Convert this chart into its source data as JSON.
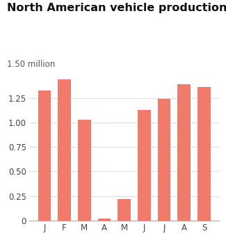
{
  "title": "North American vehicle production",
  "subtitle": "1.50 million",
  "categories": [
    "J",
    "F",
    "M",
    "A",
    "M",
    "J",
    "J",
    "A",
    "S"
  ],
  "values": [
    1.33,
    1.44,
    1.03,
    0.02,
    0.22,
    1.13,
    1.24,
    1.39,
    1.36
  ],
  "bar_color": "#F07B6A",
  "background_color": "#ffffff",
  "ylim": [
    0,
    1.55
  ],
  "yticks": [
    0,
    0.25,
    0.5,
    0.75,
    1.0,
    1.25
  ],
  "ytick_labels": [
    "0",
    "0.25",
    "0.50",
    "0.75",
    "1.00",
    "1.25"
  ],
  "grid_color": "#dddddd",
  "title_fontsize": 11.5,
  "subtitle_fontsize": 8.5,
  "tick_fontsize": 8.5
}
